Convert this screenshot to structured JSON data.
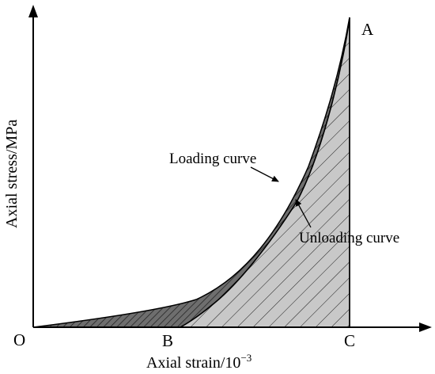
{
  "figure": {
    "y_axis_label": "Axial stress/MPa",
    "x_axis_label": {
      "prefix": "Axial strain/10",
      "exponent": "−3"
    },
    "points": {
      "origin": "O",
      "b": "B",
      "c": "C",
      "a": "A"
    },
    "annotations": {
      "loading": "Loading curve",
      "unloading": "Unloading curve"
    },
    "colors": {
      "loading_region_fill": "#6e6e6e",
      "unloading_region_fill": "#c8c8c8",
      "line": "#000000"
    }
  }
}
